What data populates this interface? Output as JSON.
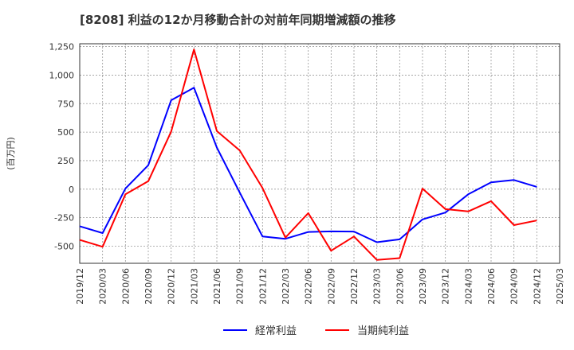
{
  "chart_data": {
    "type": "line",
    "title": "[8208]  利益の12か月移動合計の対前年同期増減額の推移",
    "ylabel": "(百万円)",
    "xlabel": "",
    "ylim": [
      -650,
      1275
    ],
    "yticks": [
      1250,
      1000,
      750,
      500,
      250,
      0,
      -250,
      -500
    ],
    "ytick_labels": [
      "1,250",
      "1,000",
      "750",
      "500",
      "250",
      "0",
      "-250",
      "-500"
    ],
    "categories": [
      "2019/12",
      "2020/03",
      "2020/06",
      "2020/09",
      "2020/12",
      "2021/03",
      "2021/06",
      "2021/09",
      "2021/12",
      "2022/03",
      "2022/06",
      "2022/09",
      "2022/12",
      "2023/03",
      "2023/06",
      "2023/09",
      "2023/12",
      "2024/03",
      "2024/06",
      "2024/09",
      "2024/12",
      "2025/03"
    ],
    "grid": true,
    "legend_position": "bottom",
    "series": [
      {
        "name": "経常利益",
        "color": "#0000ff",
        "values": [
          -325,
          -385,
          5,
          210,
          780,
          890,
          365,
          -30,
          -415,
          -435,
          -375,
          -370,
          -372,
          -465,
          -440,
          -265,
          -205,
          -45,
          60,
          80,
          20,
          null
        ]
      },
      {
        "name": "当期純利益",
        "color": "#ff0000",
        "values": [
          -445,
          -505,
          -45,
          70,
          505,
          1225,
          510,
          340,
          10,
          -425,
          -210,
          -540,
          -415,
          -620,
          -605,
          5,
          -175,
          -195,
          -105,
          -315,
          -275,
          null
        ]
      }
    ]
  }
}
